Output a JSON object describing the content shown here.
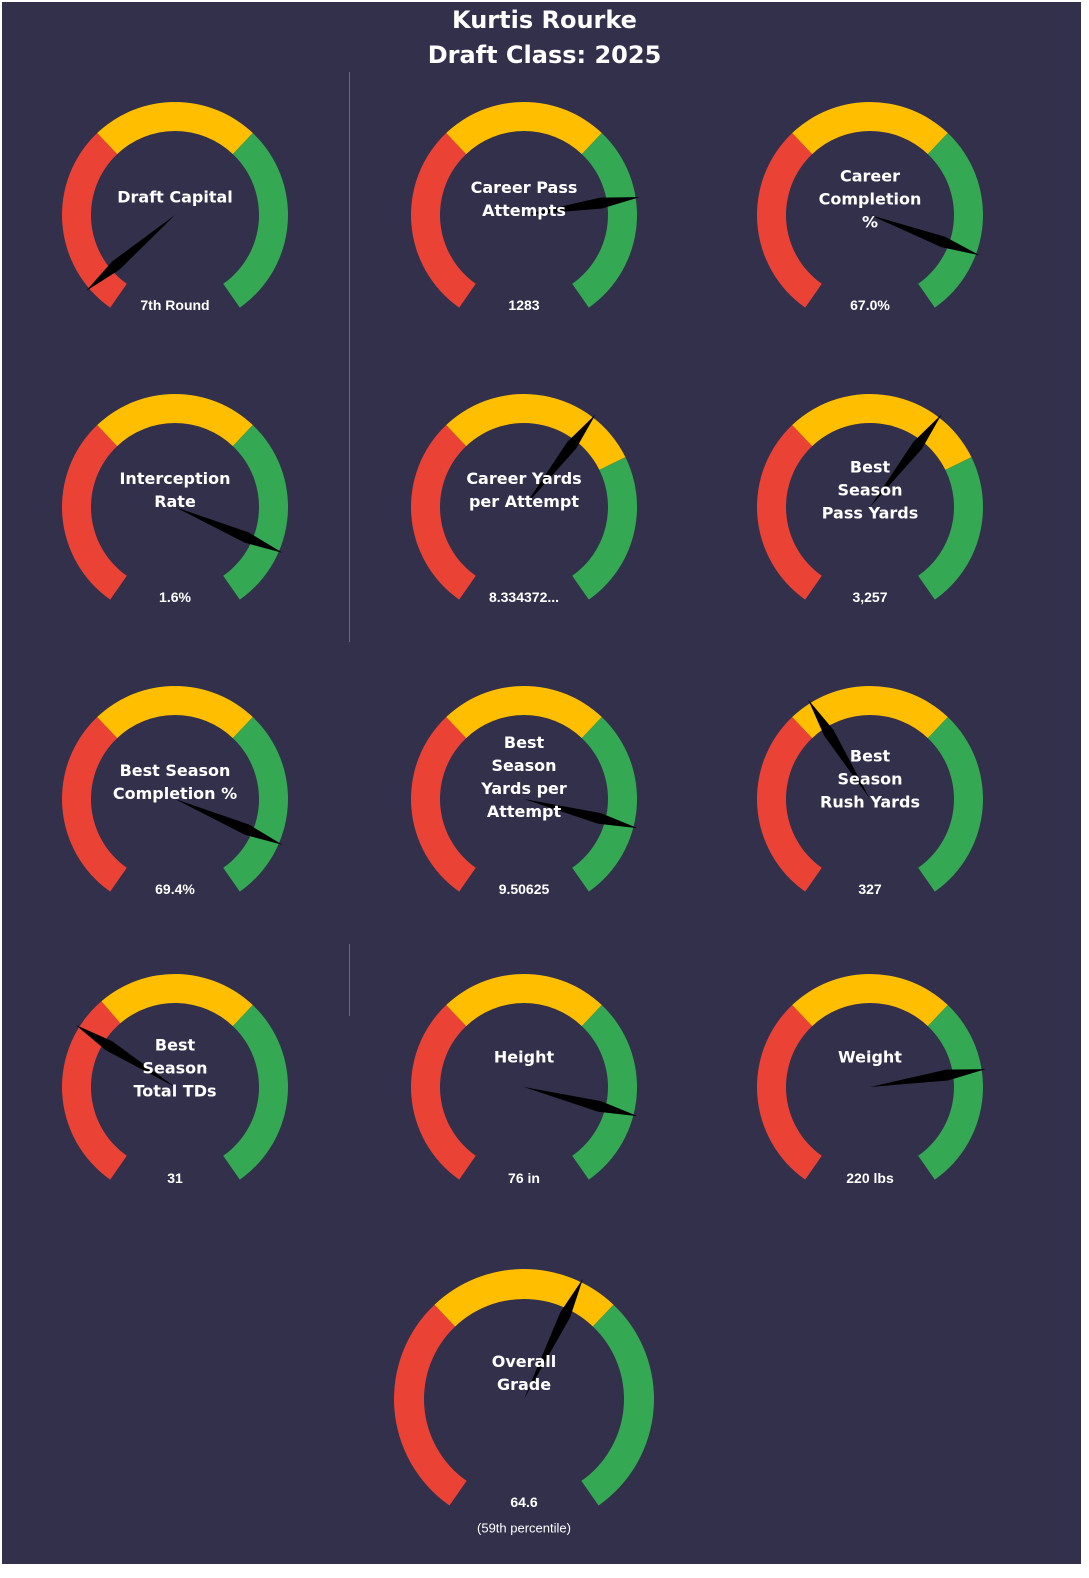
{
  "header": {
    "player_name": "Kurtis Rourke",
    "draft_class": "Draft Class: 2025"
  },
  "colors": {
    "background": "#33304c",
    "low": "#ea4335",
    "mid": "#ffbf00",
    "high": "#34a853",
    "needle": "#000000",
    "text": "#ffffff"
  },
  "chart_data": [
    {
      "type": "gauge",
      "label": "Draft Capital",
      "value_label": "7th Round",
      "percentile": 5,
      "bands": [
        [
          "low",
          0,
          35
        ],
        [
          "mid",
          35,
          65
        ],
        [
          "high",
          65,
          100
        ]
      ]
    },
    {
      "type": "gauge",
      "label": "Career Pass Attempts",
      "value_label": "1283",
      "percentile": 78,
      "bands": [
        [
          "low",
          0,
          35
        ],
        [
          "mid",
          35,
          65
        ],
        [
          "high",
          65,
          100
        ]
      ]
    },
    {
      "type": "gauge",
      "label": "Career Completion %",
      "value_label": "67.0%",
      "percentile": 88,
      "bands": [
        [
          "low",
          0,
          35
        ],
        [
          "mid",
          35,
          65
        ],
        [
          "high",
          65,
          100
        ]
      ]
    },
    {
      "type": "gauge",
      "label": "Interception Rate",
      "value_label": "1.6%",
      "percentile": 89,
      "bands": [
        [
          "low",
          0,
          35
        ],
        [
          "mid",
          35,
          65
        ],
        [
          "high",
          65,
          100
        ]
      ]
    },
    {
      "type": "gauge",
      "label": "Career Yards per Attempt",
      "value_label": "8.334372...",
      "percentile": 63,
      "bands": [
        [
          "low",
          0,
          35
        ],
        [
          "mid",
          35,
          72
        ],
        [
          "high",
          72,
          100
        ]
      ]
    },
    {
      "type": "gauge",
      "label": "Best Season Pass Yards",
      "value_label": "3,257",
      "percentile": 63,
      "bands": [
        [
          "low",
          0,
          35
        ],
        [
          "mid",
          35,
          72
        ],
        [
          "high",
          72,
          100
        ]
      ]
    },
    {
      "type": "gauge",
      "label": "Best Season Completion %",
      "value_label": "69.4%",
      "percentile": 89,
      "bands": [
        [
          "low",
          0,
          35
        ],
        [
          "mid",
          35,
          65
        ],
        [
          "high",
          65,
          100
        ]
      ]
    },
    {
      "type": "gauge",
      "label": "Best Season Yards per Attempt",
      "value_label": "9.50625",
      "percentile": 86,
      "bands": [
        [
          "low",
          0,
          35
        ],
        [
          "mid",
          35,
          65
        ],
        [
          "high",
          65,
          100
        ]
      ]
    },
    {
      "type": "gauge",
      "label": "Best Season Rush Yards",
      "value_label": "327",
      "percentile": 39,
      "bands": [
        [
          "low",
          0,
          35
        ],
        [
          "mid",
          35,
          65
        ],
        [
          "high",
          65,
          100
        ]
      ]
    },
    {
      "type": "gauge",
      "label": "Best Season Total TDs",
      "value_label": "31",
      "percentile": 30,
      "bands": [
        [
          "low",
          0,
          36
        ],
        [
          "mid",
          36,
          65
        ],
        [
          "high",
          65,
          100
        ]
      ]
    },
    {
      "type": "gauge",
      "label": "Height",
      "value_label": "76 in",
      "percentile": 86,
      "bands": [
        [
          "low",
          0,
          35
        ],
        [
          "mid",
          35,
          65
        ],
        [
          "high",
          65,
          100
        ]
      ]
    },
    {
      "type": "gauge",
      "label": "Weight",
      "value_label": "220 lbs",
      "percentile": 78,
      "bands": [
        [
          "low",
          0,
          35
        ],
        [
          "mid",
          35,
          65
        ],
        [
          "high",
          65,
          100
        ]
      ]
    },
    {
      "type": "gauge",
      "label": "Overall Grade",
      "value_label": "64.6",
      "sub_label": "(59th  percentile)",
      "percentile": 59,
      "bands": [
        [
          "low",
          0,
          35
        ],
        [
          "mid",
          35,
          65
        ],
        [
          "high",
          65,
          100
        ]
      ]
    }
  ]
}
